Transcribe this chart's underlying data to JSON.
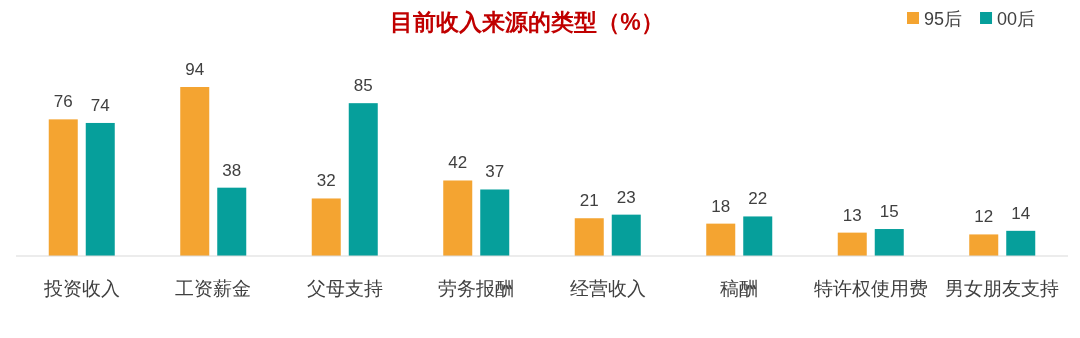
{
  "chart_data": {
    "type": "bar",
    "title": "目前收入来源的类型（%）",
    "categories": [
      "投资收入",
      "工资薪金",
      "父母支持",
      "劳务报酬",
      "经营收入",
      "稿酬",
      "特许权使用费",
      "男女朋友支持"
    ],
    "series": [
      {
        "name": "95后",
        "color": "#f4a431",
        "values": [
          76,
          94,
          32,
          42,
          21,
          18,
          13,
          12
        ]
      },
      {
        "name": "00后",
        "color": "#069f9b",
        "values": [
          74,
          38,
          85,
          37,
          23,
          22,
          15,
          14
        ]
      }
    ],
    "data_labels": true,
    "legend": "top right"
  }
}
